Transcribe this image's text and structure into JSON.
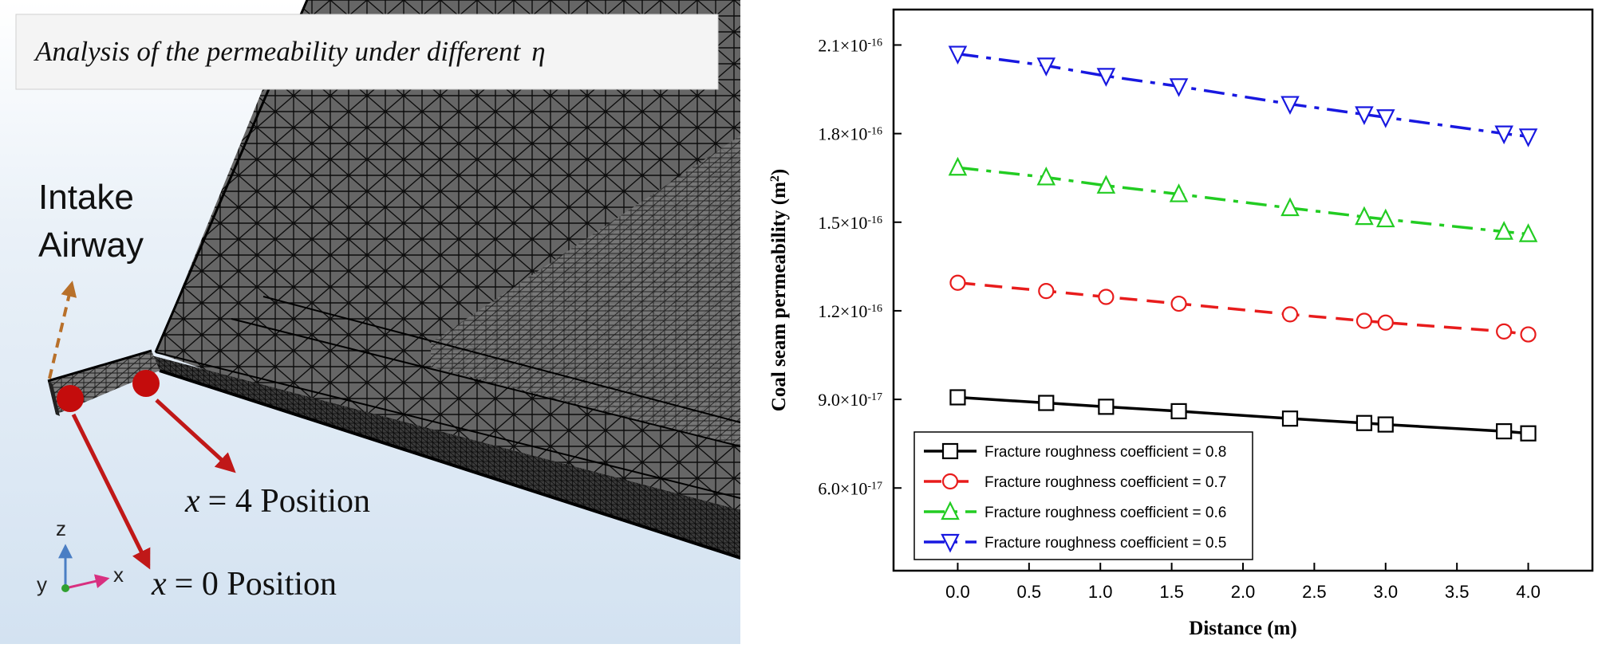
{
  "left_panel": {
    "title_box": "Analysis of the permeability under different",
    "title_symbol": "η",
    "intake_label_line1": "Intake",
    "intake_label_line2": "Airway",
    "pos4_var": "x",
    "pos4_text": "= 4 Position",
    "pos0_var": "x",
    "pos0_text": "= 0  Position",
    "axis_z": "z",
    "axis_x": "x",
    "axis_y": "y",
    "colors": {
      "marker": "#c40c0c",
      "arrow_red": "#c01818",
      "arrow_dashed": "#b8702a",
      "background": "#dce8f4"
    }
  },
  "chart_data": {
    "type": "line",
    "title": "",
    "xlabel": "Distance (m)",
    "ylabel": "Coal seam permeability (m²)",
    "ylabel_main": "Coal seam permeability (m",
    "ylabel_sup": "2",
    "ylabel_end": ")",
    "xlim": [
      -0.45,
      4.45
    ],
    "ylim": [
      3.2e-17,
      2.22e-16
    ],
    "x_ticks": [
      0.0,
      0.5,
      1.0,
      1.5,
      2.0,
      2.5,
      3.0,
      3.5,
      4.0
    ],
    "x_tick_labels": [
      "0.0",
      "0.5",
      "1.0",
      "1.5",
      "2.0",
      "2.5",
      "3.0",
      "3.5",
      "4.0"
    ],
    "y_ticks": [
      6e-17,
      9e-17,
      1.2e-16,
      1.5e-16,
      1.8e-16,
      2.1e-16
    ],
    "y_tick_mantissa": [
      "6.0×10",
      "9.0×10",
      "1.2×10",
      "1.5×10",
      "1.8×10",
      "2.1×10"
    ],
    "y_tick_exponent": [
      "-17",
      "-17",
      "-16",
      "-16",
      "-16",
      "-16"
    ],
    "legend_position": "bottom-left",
    "x": [
      0.0,
      0.62,
      1.04,
      1.55,
      2.33,
      2.85,
      3.0,
      3.83,
      4.0
    ],
    "series": [
      {
        "name": "Fracture roughness coefficient = 0.8",
        "color": "#000000",
        "marker": "square",
        "dash": "solid",
        "values": [
          9.07e-17,
          8.88e-17,
          8.75e-17,
          8.6e-17,
          8.35e-17,
          8.2e-17,
          8.15e-17,
          7.92e-17,
          7.85e-17
        ]
      },
      {
        "name": "Fracture roughness coefficient = 0.7",
        "color": "#e81c1c",
        "marker": "circle",
        "dash": "dash",
        "values": [
          1.295e-16,
          1.267e-16,
          1.247e-16,
          1.224e-16,
          1.188e-16,
          1.166e-16,
          1.16e-16,
          1.13e-16,
          1.12e-16
        ]
      },
      {
        "name": "Fracture roughness coefficient = 0.6",
        "color": "#22cc22",
        "marker": "triangle-up",
        "dash": "dashdot",
        "values": [
          1.685e-16,
          1.652e-16,
          1.624e-16,
          1.595e-16,
          1.548e-16,
          1.518e-16,
          1.51e-16,
          1.468e-16,
          1.46e-16
        ]
      },
      {
        "name": "Fracture roughness coefficient = 0.5",
        "color": "#1818e0",
        "marker": "triangle-down",
        "dash": "dashdot",
        "values": [
          2.07e-16,
          2.03e-16,
          1.995e-16,
          1.96e-16,
          1.9e-16,
          1.865e-16,
          1.855e-16,
          1.8e-16,
          1.79e-16
        ]
      }
    ]
  }
}
